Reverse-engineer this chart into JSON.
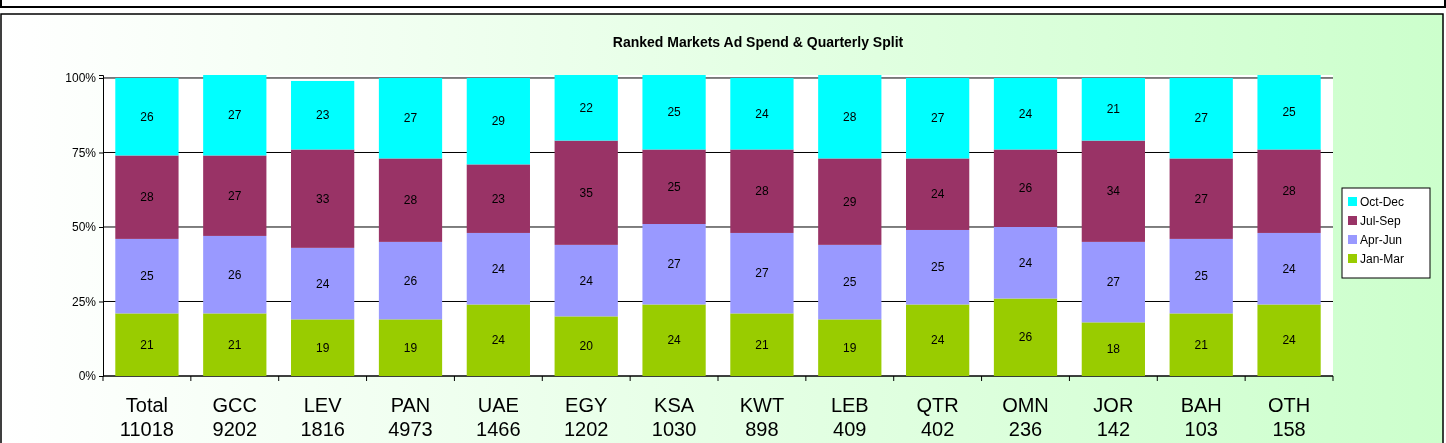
{
  "chart_data": {
    "type": "bar",
    "title": "Ranked  Markets Ad Spend & Quarterly Split",
    "stacked": true,
    "data_labels": true,
    "categories": [
      "Total\n11018",
      "GCC\n9202",
      "LEV\n1816",
      "PAN\n4973",
      "UAE\n1466",
      "EGY\n1202",
      "KSA\n1030",
      "KWT\n898",
      "LEB\n409",
      "QTR\n402",
      "OMN\n236",
      "JOR\n142",
      "BAH\n103",
      "OTH\n158"
    ],
    "series": [
      {
        "name": "Jan-Mar",
        "color": "#99cc00",
        "values": [
          21,
          21,
          19,
          19,
          24,
          20,
          24,
          21,
          19,
          24,
          26,
          18,
          21,
          24
        ]
      },
      {
        "name": "Apr-Jun",
        "color": "#9999ff",
        "values": [
          25,
          26,
          24,
          26,
          24,
          24,
          27,
          27,
          25,
          25,
          24,
          27,
          25,
          24
        ]
      },
      {
        "name": "Jul-Sep",
        "color": "#993366",
        "values": [
          28,
          27,
          33,
          28,
          23,
          35,
          25,
          28,
          29,
          24,
          26,
          34,
          27,
          28
        ]
      },
      {
        "name": "Oct-Dec",
        "color": "#00ffff",
        "values": [
          26,
          27,
          23,
          27,
          29,
          22,
          25,
          24,
          28,
          27,
          24,
          21,
          27,
          25
        ]
      }
    ],
    "ylim": [
      0,
      101
    ],
    "yticks": [
      {
        "value": 0,
        "label": "0%"
      },
      {
        "value": 25,
        "label": "25%"
      },
      {
        "value": 50,
        "label": "50%"
      },
      {
        "value": 75,
        "label": "75%"
      },
      {
        "value": 100,
        "label": "100%"
      }
    ],
    "grid": "y",
    "legend": "right"
  }
}
